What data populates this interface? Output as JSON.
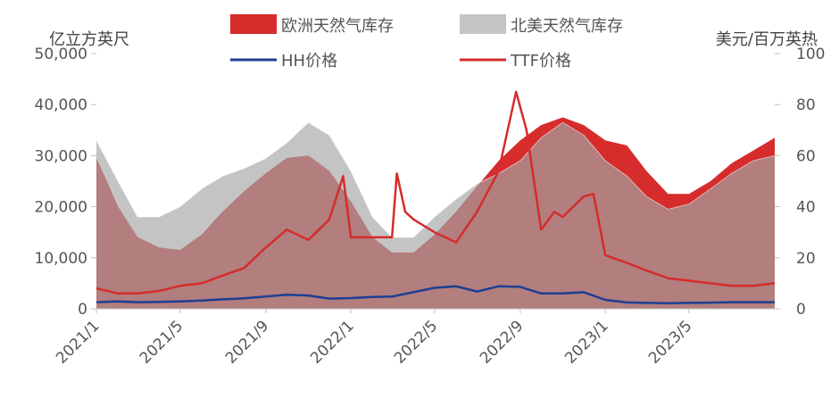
{
  "chart_data": {
    "type": "area",
    "left_axis_label": "亿立方英尺",
    "right_axis_label": "美元/百万英热",
    "x_ticks": [
      "2021/1",
      "2021/5",
      "2021/9",
      "2022/1",
      "2022/5",
      "2022/9",
      "2023/1",
      "2023/5"
    ],
    "x_range": [
      "2021/1",
      "2023/9"
    ],
    "y_left_ticks": [
      "0",
      "10,000",
      "20,000",
      "30,000",
      "40,000",
      "50,000"
    ],
    "y_left_range": [
      0,
      50000
    ],
    "y_right_ticks": [
      "0",
      "20",
      "40",
      "60",
      "80",
      "100"
    ],
    "y_right_range": [
      0,
      100
    ],
    "colors": {
      "europe_storage": "#d62c2c",
      "na_storage": "#c4c4c4",
      "hh": "#1f3f91",
      "ttf": "#d62c2c",
      "overlap": "#b27e7e"
    },
    "legend": [
      {
        "label": "欧洲天然气库存",
        "kind": "area",
        "series": "europe_storage"
      },
      {
        "label": "北美天然气库存",
        "kind": "area",
        "series": "na_storage"
      },
      {
        "label": "HH价格",
        "kind": "line",
        "series": "hh"
      },
      {
        "label": "TTF价格",
        "kind": "line",
        "series": "ttf"
      }
    ],
    "series": {
      "europe_storage": {
        "axis": "left",
        "x": [
          "2021-01-01",
          "2021-02-01",
          "2021-03-01",
          "2021-04-01",
          "2021-05-01",
          "2021-06-01",
          "2021-07-01",
          "2021-08-01",
          "2021-09-01",
          "2021-10-01",
          "2021-11-01",
          "2021-12-01",
          "2022-01-01",
          "2022-02-01",
          "2022-03-01",
          "2022-04-01",
          "2022-05-01",
          "2022-06-01",
          "2022-07-01",
          "2022-08-01",
          "2022-09-01",
          "2022-10-01",
          "2022-11-01",
          "2022-12-01",
          "2023-01-01",
          "2023-02-01",
          "2023-03-01",
          "2023-04-01",
          "2023-05-01",
          "2023-06-01",
          "2023-07-01",
          "2023-08-01",
          "2023-09-01"
        ],
        "y": [
          29500,
          20000,
          14000,
          12000,
          11500,
          14500,
          19000,
          23000,
          26500,
          29500,
          30000,
          27000,
          21000,
          14000,
          11000,
          11000,
          14500,
          19000,
          24000,
          29000,
          33000,
          36000,
          37500,
          36000,
          33000,
          32000,
          27000,
          22500,
          22500,
          25000,
          28500,
          31000,
          33500
        ]
      },
      "na_storage": {
        "axis": "left",
        "x": [
          "2021-01-01",
          "2021-02-01",
          "2021-03-01",
          "2021-04-01",
          "2021-05-01",
          "2021-06-01",
          "2021-07-01",
          "2021-08-01",
          "2021-09-01",
          "2021-10-01",
          "2021-11-01",
          "2021-12-01",
          "2022-01-01",
          "2022-02-01",
          "2022-03-01",
          "2022-04-01",
          "2022-05-01",
          "2022-06-01",
          "2022-07-01",
          "2022-08-01",
          "2022-09-01",
          "2022-10-01",
          "2022-11-01",
          "2022-12-01",
          "2023-01-01",
          "2023-02-01",
          "2023-03-01",
          "2023-04-01",
          "2023-05-01",
          "2023-06-01",
          "2023-07-01",
          "2023-08-01",
          "2023-09-01"
        ],
        "y": [
          33000,
          25000,
          18000,
          18000,
          20000,
          23500,
          26000,
          27500,
          29500,
          32500,
          36500,
          34000,
          27000,
          18000,
          14000,
          14000,
          18000,
          21500,
          24500,
          26500,
          29000,
          33500,
          36500,
          34000,
          29000,
          26000,
          22000,
          19500,
          20500,
          23500,
          26500,
          29000,
          30000
        ]
      },
      "hh": {
        "axis": "right",
        "x": [
          "2021-01-01",
          "2021-02-01",
          "2021-03-01",
          "2021-04-01",
          "2021-05-01",
          "2021-06-01",
          "2021-07-01",
          "2021-08-01",
          "2021-09-01",
          "2021-10-01",
          "2021-11-01",
          "2021-12-01",
          "2022-01-01",
          "2022-02-01",
          "2022-03-01",
          "2022-04-01",
          "2022-05-01",
          "2022-06-01",
          "2022-07-01",
          "2022-08-01",
          "2022-09-01",
          "2022-10-01",
          "2022-11-01",
          "2022-12-01",
          "2023-01-01",
          "2023-02-01",
          "2023-03-01",
          "2023-04-01",
          "2023-05-01",
          "2023-06-01",
          "2023-07-01",
          "2023-08-01",
          "2023-09-01"
        ],
        "y": [
          2.6,
          2.9,
          2.6,
          2.7,
          2.9,
          3.2,
          3.7,
          4.1,
          4.8,
          5.5,
          5.2,
          4.0,
          4.2,
          4.6,
          4.8,
          6.5,
          8.2,
          8.8,
          6.8,
          8.8,
          8.6,
          6.0,
          6.0,
          6.5,
          3.5,
          2.5,
          2.3,
          2.2,
          2.3,
          2.4,
          2.6,
          2.6,
          2.6
        ]
      },
      "ttf": {
        "axis": "right",
        "x": [
          "2021-01-01",
          "2021-02-01",
          "2021-03-01",
          "2021-04-01",
          "2021-05-01",
          "2021-06-01",
          "2021-07-01",
          "2021-08-01",
          "2021-09-01",
          "2021-10-01",
          "2021-11-01",
          "2021-12-01",
          "2021-12-21",
          "2022-01-01",
          "2022-02-01",
          "2022-03-01",
          "2022-03-08",
          "2022-03-20",
          "2022-04-01",
          "2022-05-01",
          "2022-06-01",
          "2022-07-01",
          "2022-08-01",
          "2022-08-26",
          "2022-09-10",
          "2022-10-01",
          "2022-10-20",
          "2022-11-01",
          "2022-12-01",
          "2022-12-15",
          "2023-01-01",
          "2023-02-01",
          "2023-03-01",
          "2023-04-01",
          "2023-05-01",
          "2023-06-01",
          "2023-07-01",
          "2023-08-01",
          "2023-09-01"
        ],
        "y": [
          8,
          6,
          6,
          7,
          9,
          10,
          13,
          16,
          24,
          31,
          27,
          35,
          52,
          28,
          28,
          28,
          53,
          38,
          35,
          30,
          26,
          38,
          54,
          85,
          70,
          31,
          38,
          36,
          44,
          45,
          21,
          18,
          15,
          12,
          11,
          10,
          9,
          9,
          10
        ]
      }
    }
  }
}
